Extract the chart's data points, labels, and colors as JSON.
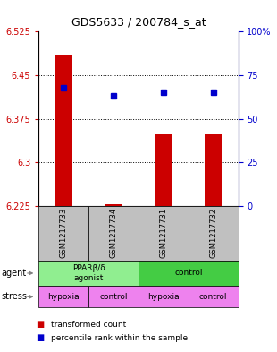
{
  "title": "GDS5633 / 200784_s_at",
  "samples": [
    "GSM1217733",
    "GSM1217734",
    "GSM1217731",
    "GSM1217732"
  ],
  "transformed_counts": [
    6.485,
    6.228,
    6.348,
    6.348
  ],
  "percentile_ranks": [
    68,
    63,
    65,
    65
  ],
  "y_min": 6.225,
  "y_max": 6.525,
  "y_ticks_left": [
    6.225,
    6.3,
    6.375,
    6.45,
    6.525
  ],
  "y_ticks_right": [
    0,
    25,
    50,
    75,
    100
  ],
  "agent_colors": [
    "#90EE90",
    "#44CC44"
  ],
  "stress_color": "#EE82EE",
  "bar_color": "#CC0000",
  "dot_color": "#0000CC",
  "bg_color": "#FFFFFF",
  "plot_bg": "#FFFFFF",
  "left_axis_color": "#CC0000",
  "right_axis_color": "#0000CC",
  "grid_color": "#000000",
  "sample_box_color": "#C0C0C0",
  "legend_items": [
    "transformed count",
    "percentile rank within the sample"
  ]
}
